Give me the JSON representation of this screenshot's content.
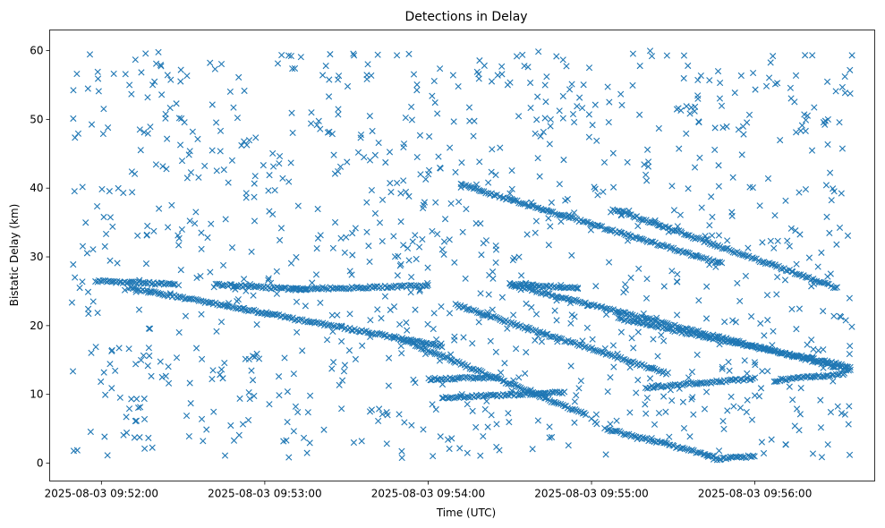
{
  "chart_data": {
    "type": "scatter",
    "title": "Detections in Delay",
    "xlabel": "Time (UTC)",
    "ylabel": "Bistatic Delay (km)",
    "x_ticks": [
      "2025-08-03 09:52:00",
      "2025-08-03 09:53:00",
      "2025-08-03 09:54:00",
      "2025-08-03 09:55:00",
      "2025-08-03 09:56:00"
    ],
    "y_ticks": [
      0,
      10,
      20,
      30,
      40,
      50,
      60
    ],
    "xlim": [
      "2025-08-03 09:51:41",
      "2025-08-03 09:56:44"
    ],
    "ylim": [
      -2.6,
      63
    ],
    "grid": false,
    "marker": "x",
    "color": "#1f77b4",
    "tracks": [
      {
        "start": [
          "2025-08-03 09:52:10",
          25.5
        ],
        "end": [
          "2025-08-03 09:54:05",
          17.0
        ]
      },
      {
        "start": [
          "2025-08-03 09:54:10",
          23.0
        ],
        "end": [
          "2025-08-03 09:55:28",
          13.0
        ]
      },
      {
        "start": [
          "2025-08-03 09:54:12",
          40.5
        ],
        "end": [
          "2025-08-03 09:55:48",
          29.0
        ]
      },
      {
        "start": [
          "2025-08-03 09:54:30",
          26.0
        ],
        "end": [
          "2025-08-03 09:56:35",
          13.5
        ]
      },
      {
        "start": [
          "2025-08-03 09:55:08",
          37.0
        ],
        "end": [
          "2025-08-03 09:56:30",
          25.5
        ]
      },
      {
        "start": [
          "2025-08-03 09:55:10",
          21.0
        ],
        "end": [
          "2025-08-03 09:56:35",
          14.0
        ]
      },
      {
        "start": [
          "2025-08-03 09:53:50",
          18.0
        ],
        "end": [
          "2025-08-03 09:54:58",
          7.0
        ]
      },
      {
        "start": [
          "2025-08-03 09:55:05",
          5.0
        ],
        "end": [
          "2025-08-03 09:55:45",
          1.0
        ]
      },
      {
        "start": [
          "2025-08-03 09:55:45",
          0.6
        ],
        "end": [
          "2025-08-03 09:56:00",
          1.0
        ]
      },
      {
        "start": [
          "2025-08-03 09:51:58",
          26.5
        ],
        "end": [
          "2025-08-03 09:52:27",
          26.0
        ]
      },
      {
        "start": [
          "2025-08-03 09:52:42",
          26.0
        ],
        "end": [
          "2025-08-03 09:53:15",
          25.2
        ]
      },
      {
        "start": [
          "2025-08-03 09:53:10",
          25.3
        ],
        "end": [
          "2025-08-03 09:54:00",
          25.8
        ]
      },
      {
        "start": [
          "2025-08-03 09:54:30",
          26.0
        ],
        "end": [
          "2025-08-03 09:54:55",
          25.5
        ]
      },
      {
        "start": [
          "2025-08-03 09:54:00",
          12.2
        ],
        "end": [
          "2025-08-03 09:54:25",
          12.5
        ]
      },
      {
        "start": [
          "2025-08-03 09:54:05",
          9.5
        ],
        "end": [
          "2025-08-03 09:54:50",
          10.3
        ]
      },
      {
        "start": [
          "2025-08-03 09:55:20",
          11.0
        ],
        "end": [
          "2025-08-03 09:56:00",
          12.3
        ]
      },
      {
        "start": [
          "2025-08-03 09:56:07",
          12.0
        ],
        "end": [
          "2025-08-03 09:56:33",
          13.0
        ]
      }
    ],
    "background_noise": {
      "x_range": [
        "2025-08-03 09:51:41",
        "2025-08-03 09:56:36"
      ],
      "y_range": [
        0.5,
        60
      ]
    }
  }
}
